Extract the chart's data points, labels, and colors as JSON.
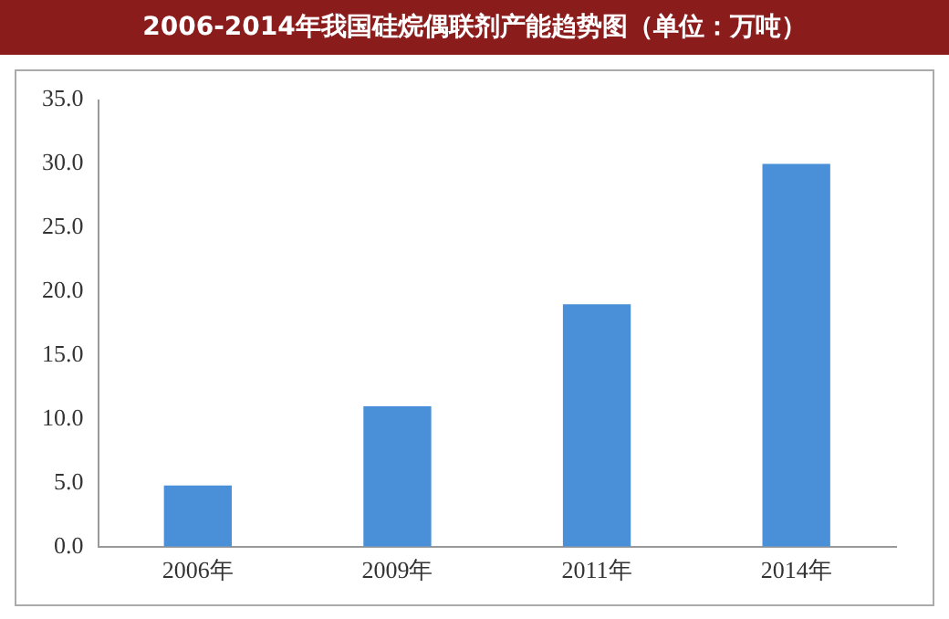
{
  "chart_data": {
    "type": "bar",
    "title": "2006-2014年我国硅烷偶联剂产能趋势图（单位：万吨）",
    "categories": [
      "2006年",
      "2009年",
      "2011年",
      "2014年"
    ],
    "values": [
      4.8,
      11,
      19,
      30
    ],
    "color": "#4a90d9",
    "ylim": [
      0,
      35
    ],
    "yticks": [
      {
        "value": 0,
        "label": "0.0"
      },
      {
        "value": 5,
        "label": "5.0"
      },
      {
        "value": 10,
        "label": "10.0"
      },
      {
        "value": 15,
        "label": "15.0"
      },
      {
        "value": 20,
        "label": "20.0"
      },
      {
        "value": 25,
        "label": "25.0"
      },
      {
        "value": 30,
        "label": "30.0"
      },
      {
        "value": 35,
        "label": "35.0"
      }
    ],
    "grid": false,
    "legend": false
  }
}
